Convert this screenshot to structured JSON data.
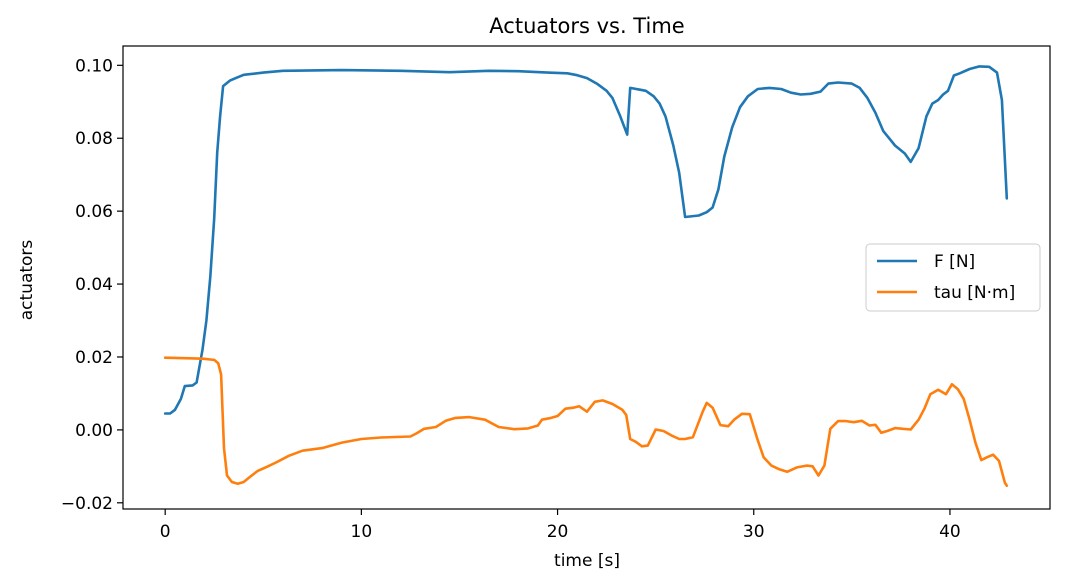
{
  "chart_data": {
    "type": "line",
    "title": "Actuators vs. Time",
    "xlabel": "time [s]",
    "ylabel": "actuators",
    "xlim": [
      -2.15,
      45.1
    ],
    "ylim": [
      -0.0217,
      0.1053
    ],
    "x_ticks": [
      0,
      10,
      20,
      30,
      40
    ],
    "y_ticks": [
      -0.02,
      0.0,
      0.02,
      0.04,
      0.06,
      0.08,
      0.1
    ],
    "x_tick_labels": [
      "0",
      "10",
      "20",
      "30",
      "40"
    ],
    "y_tick_labels": [
      "−0.02",
      "0.00",
      "0.02",
      "0.04",
      "0.06",
      "0.08",
      "0.10"
    ],
    "grid": false,
    "legend_position": "center-right",
    "series": [
      {
        "name": "F [N]",
        "color": "#1f77b4",
        "points": [
          [
            0.0,
            0.0045
          ],
          [
            0.25,
            0.0045
          ],
          [
            0.5,
            0.0055
          ],
          [
            0.8,
            0.0085
          ],
          [
            1.0,
            0.012
          ],
          [
            1.4,
            0.0122
          ],
          [
            1.6,
            0.013
          ],
          [
            1.9,
            0.022
          ],
          [
            2.1,
            0.03
          ],
          [
            2.3,
            0.042
          ],
          [
            2.5,
            0.058
          ],
          [
            2.65,
            0.076
          ],
          [
            2.8,
            0.086
          ],
          [
            2.95,
            0.0943
          ],
          [
            3.3,
            0.0958
          ],
          [
            3.6,
            0.0965
          ],
          [
            4.0,
            0.0974
          ],
          [
            5.0,
            0.098
          ],
          [
            6.0,
            0.0985
          ],
          [
            9.0,
            0.0987
          ],
          [
            12.0,
            0.0985
          ],
          [
            14.5,
            0.0981
          ],
          [
            16.5,
            0.0985
          ],
          [
            18.0,
            0.0984
          ],
          [
            19.5,
            0.098
          ],
          [
            20.5,
            0.0978
          ],
          [
            21.0,
            0.0973
          ],
          [
            21.5,
            0.0965
          ],
          [
            22.0,
            0.095
          ],
          [
            22.5,
            0.093
          ],
          [
            22.8,
            0.091
          ],
          [
            23.2,
            0.086
          ],
          [
            23.55,
            0.081
          ],
          [
            23.7,
            0.0938
          ],
          [
            24.2,
            0.0933
          ],
          [
            24.5,
            0.093
          ],
          [
            24.9,
            0.0915
          ],
          [
            25.2,
            0.0895
          ],
          [
            25.5,
            0.086
          ],
          [
            25.9,
            0.078
          ],
          [
            26.2,
            0.0705
          ],
          [
            26.5,
            0.0584
          ],
          [
            27.2,
            0.0588
          ],
          [
            27.6,
            0.0597
          ],
          [
            27.9,
            0.061
          ],
          [
            28.2,
            0.066
          ],
          [
            28.5,
            0.075
          ],
          [
            28.9,
            0.083
          ],
          [
            29.3,
            0.0885
          ],
          [
            29.7,
            0.0915
          ],
          [
            30.2,
            0.0935
          ],
          [
            30.8,
            0.0938
          ],
          [
            31.4,
            0.0935
          ],
          [
            31.9,
            0.0925
          ],
          [
            32.4,
            0.092
          ],
          [
            32.9,
            0.0922
          ],
          [
            33.4,
            0.0928
          ],
          [
            33.8,
            0.095
          ],
          [
            34.3,
            0.0953
          ],
          [
            35.0,
            0.095
          ],
          [
            35.4,
            0.0938
          ],
          [
            35.8,
            0.091
          ],
          [
            36.2,
            0.087
          ],
          [
            36.6,
            0.082
          ],
          [
            37.2,
            0.078
          ],
          [
            37.7,
            0.0758
          ],
          [
            38.0,
            0.0735
          ],
          [
            38.4,
            0.0773
          ],
          [
            38.8,
            0.086
          ],
          [
            39.1,
            0.0895
          ],
          [
            39.4,
            0.0905
          ],
          [
            39.65,
            0.092
          ],
          [
            39.9,
            0.093
          ],
          [
            40.2,
            0.0972
          ],
          [
            40.5,
            0.0978
          ],
          [
            41.0,
            0.099
          ],
          [
            41.5,
            0.0997
          ],
          [
            42.0,
            0.0996
          ],
          [
            42.4,
            0.098
          ],
          [
            42.65,
            0.0905
          ],
          [
            42.9,
            0.0635
          ]
        ]
      },
      {
        "name": "tau [N·m]",
        "color": "#ff7f0e",
        "points": [
          [
            0.0,
            0.0198
          ],
          [
            1.5,
            0.0196
          ],
          [
            2.0,
            0.0195
          ],
          [
            2.3,
            0.0193
          ],
          [
            2.5,
            0.0192
          ],
          [
            2.7,
            0.0183
          ],
          [
            2.85,
            0.0152
          ],
          [
            3.0,
            -0.005
          ],
          [
            3.15,
            -0.0125
          ],
          [
            3.4,
            -0.0143
          ],
          [
            3.7,
            -0.0148
          ],
          [
            4.0,
            -0.0143
          ],
          [
            4.3,
            -0.013
          ],
          [
            4.7,
            -0.0113
          ],
          [
            5.2,
            -0.0101
          ],
          [
            5.7,
            -0.0088
          ],
          [
            6.3,
            -0.0071
          ],
          [
            7.0,
            -0.0057
          ],
          [
            8.0,
            -0.005
          ],
          [
            9.0,
            -0.0035
          ],
          [
            10.0,
            -0.0025
          ],
          [
            11.0,
            -0.0021
          ],
          [
            12.5,
            -0.0018
          ],
          [
            12.8,
            -0.001
          ],
          [
            13.2,
            0.0003
          ],
          [
            13.8,
            0.0008
          ],
          [
            14.3,
            0.0025
          ],
          [
            14.8,
            0.0033
          ],
          [
            15.5,
            0.0035
          ],
          [
            16.3,
            0.0028
          ],
          [
            17.0,
            0.0008
          ],
          [
            17.8,
            0.0002
          ],
          [
            18.5,
            0.0004
          ],
          [
            19.0,
            0.0012
          ],
          [
            19.2,
            0.0028
          ],
          [
            19.6,
            0.0032
          ],
          [
            20.0,
            0.0038
          ],
          [
            20.4,
            0.0058
          ],
          [
            20.8,
            0.0061
          ],
          [
            21.1,
            0.0065
          ],
          [
            21.5,
            0.005
          ],
          [
            21.9,
            0.0077
          ],
          [
            22.3,
            0.0081
          ],
          [
            22.8,
            0.0071
          ],
          [
            23.3,
            0.0055
          ],
          [
            23.5,
            0.0041
          ],
          [
            23.7,
            -0.0025
          ],
          [
            24.0,
            -0.0033
          ],
          [
            24.3,
            -0.0045
          ],
          [
            24.6,
            -0.0043
          ],
          [
            25.0,
            0.0001
          ],
          [
            25.4,
            -0.0003
          ],
          [
            25.8,
            -0.0015
          ],
          [
            26.2,
            -0.0025
          ],
          [
            26.5,
            -0.0025
          ],
          [
            26.9,
            -0.002
          ],
          [
            27.4,
            0.005
          ],
          [
            27.6,
            0.0074
          ],
          [
            27.9,
            0.0061
          ],
          [
            28.3,
            0.0013
          ],
          [
            28.7,
            0.001
          ],
          [
            29.0,
            0.0028
          ],
          [
            29.4,
            0.0044
          ],
          [
            29.8,
            0.0043
          ],
          [
            30.2,
            -0.0028
          ],
          [
            30.5,
            -0.0075
          ],
          [
            30.9,
            -0.0098
          ],
          [
            31.3,
            -0.0108
          ],
          [
            31.7,
            -0.0115
          ],
          [
            32.2,
            -0.0103
          ],
          [
            32.7,
            -0.0098
          ],
          [
            33.0,
            -0.01
          ],
          [
            33.3,
            -0.0125
          ],
          [
            33.6,
            -0.0098
          ],
          [
            33.9,
            0.0003
          ],
          [
            34.3,
            0.0024
          ],
          [
            34.7,
            0.0024
          ],
          [
            35.1,
            0.0021
          ],
          [
            35.5,
            0.0025
          ],
          [
            35.9,
            0.0012
          ],
          [
            36.2,
            0.0014
          ],
          [
            36.5,
            -0.0008
          ],
          [
            36.8,
            -0.0003
          ],
          [
            37.2,
            0.0005
          ],
          [
            37.6,
            0.0003
          ],
          [
            38.0,
            0.0001
          ],
          [
            38.4,
            0.0028
          ],
          [
            38.7,
            0.0058
          ],
          [
            39.0,
            0.0098
          ],
          [
            39.4,
            0.011
          ],
          [
            39.8,
            0.0098
          ],
          [
            40.1,
            0.0125
          ],
          [
            40.4,
            0.0112
          ],
          [
            40.7,
            0.0085
          ],
          [
            41.0,
            0.0028
          ],
          [
            41.3,
            -0.0035
          ],
          [
            41.6,
            -0.0083
          ],
          [
            41.9,
            -0.0075
          ],
          [
            42.2,
            -0.0068
          ],
          [
            42.5,
            -0.0085
          ],
          [
            42.8,
            -0.0145
          ],
          [
            42.9,
            -0.0153
          ]
        ]
      }
    ]
  }
}
